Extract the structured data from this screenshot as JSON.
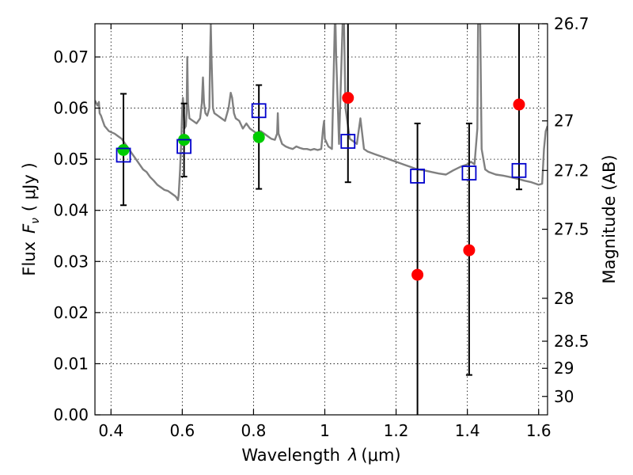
{
  "chart_data": {
    "type": "scatter",
    "xlabel_prefix": "Wavelength",
    "xlabel_symbol": "λ",
    "xlabel_unit": "(μm)",
    "ylabel_prefix": "Flux",
    "ylabel_symbol": "F",
    "ylabel_subscript": "ν",
    "ylabel_unit": "( μJy )",
    "y2label": "Magnitude (AB)",
    "xlim": [
      0.355,
      1.625
    ],
    "ylim": [
      0.0,
      0.0765
    ],
    "xticks": [
      0.4,
      0.6,
      0.8,
      1.0,
      1.2,
      1.4,
      1.6
    ],
    "xtick_labels": [
      "0.4",
      "0.6",
      "0.8",
      "1",
      "1.2",
      "1.4",
      "1.6"
    ],
    "yticks": [
      0.0,
      0.01,
      0.02,
      0.03,
      0.04,
      0.05,
      0.06,
      0.07
    ],
    "ytick_labels": [
      "0.00",
      "0.01",
      "0.02",
      "0.03",
      "0.04",
      "0.05",
      "0.06",
      "0.07"
    ],
    "y2ticks": [
      {
        "label": "26.7",
        "flux": 0.0765
      },
      {
        "label": "27",
        "flux": 0.0575
      },
      {
        "label": "27.2",
        "flux": 0.0478
      },
      {
        "label": "27.5",
        "flux": 0.0363
      },
      {
        "label": "28",
        "flux": 0.0228
      },
      {
        "label": "28.5",
        "flux": 0.0144
      },
      {
        "label": "29",
        "flux": 0.0091
      },
      {
        "label": "30",
        "flux": 0.0036
      }
    ],
    "grid": true,
    "colors": {
      "spectrum": "#808080",
      "detections": "#00cc00",
      "upper": "#ff0000",
      "model": "#0000cc",
      "errorbar": "#000000"
    },
    "series": [
      {
        "kind": "line",
        "points": [
          [
            0.355,
            0.0615
          ],
          [
            0.362,
            0.0605
          ],
          [
            0.366,
            0.0612
          ],
          [
            0.368,
            0.059
          ],
          [
            0.372,
            0.0585
          ],
          [
            0.377,
            0.0575
          ],
          [
            0.382,
            0.0565
          ],
          [
            0.388,
            0.056
          ],
          [
            0.394,
            0.0555
          ],
          [
            0.4,
            0.0553
          ],
          [
            0.41,
            0.055
          ],
          [
            0.42,
            0.0545
          ],
          [
            0.43,
            0.054
          ],
          [
            0.44,
            0.053
          ],
          [
            0.45,
            0.052
          ],
          [
            0.46,
            0.051
          ],
          [
            0.47,
            0.05
          ],
          [
            0.48,
            0.049
          ],
          [
            0.49,
            0.048
          ],
          [
            0.5,
            0.0475
          ],
          [
            0.51,
            0.0465
          ],
          [
            0.52,
            0.0458
          ],
          [
            0.53,
            0.045
          ],
          [
            0.54,
            0.0445
          ],
          [
            0.55,
            0.044
          ],
          [
            0.56,
            0.0438
          ],
          [
            0.57,
            0.0433
          ],
          [
            0.58,
            0.0428
          ],
          [
            0.584,
            0.0425
          ],
          [
            0.588,
            0.042
          ],
          [
            0.59,
            0.043
          ],
          [
            0.594,
            0.048
          ],
          [
            0.598,
            0.055
          ],
          [
            0.6,
            0.06
          ],
          [
            0.602,
            0.062
          ],
          [
            0.604,
            0.06
          ],
          [
            0.606,
            0.056
          ],
          [
            0.61,
            0.0565
          ],
          [
            0.612,
            0.059
          ],
          [
            0.614,
            0.07
          ],
          [
            0.616,
            0.061
          ],
          [
            0.62,
            0.058
          ],
          [
            0.63,
            0.0575
          ],
          [
            0.64,
            0.057
          ],
          [
            0.65,
            0.058
          ],
          [
            0.655,
            0.061
          ],
          [
            0.658,
            0.066
          ],
          [
            0.661,
            0.061
          ],
          [
            0.665,
            0.059
          ],
          [
            0.67,
            0.0585
          ],
          [
            0.676,
            0.06
          ],
          [
            0.678,
            0.07
          ],
          [
            0.68,
            0.0765
          ],
          [
            0.682,
            0.07
          ],
          [
            0.686,
            0.06
          ],
          [
            0.69,
            0.059
          ],
          [
            0.7,
            0.0585
          ],
          [
            0.71,
            0.058
          ],
          [
            0.72,
            0.0575
          ],
          [
            0.73,
            0.06
          ],
          [
            0.736,
            0.063
          ],
          [
            0.74,
            0.062
          ],
          [
            0.745,
            0.059
          ],
          [
            0.75,
            0.058
          ],
          [
            0.76,
            0.0575
          ],
          [
            0.77,
            0.056
          ],
          [
            0.78,
            0.057
          ],
          [
            0.79,
            0.056
          ],
          [
            0.8,
            0.0555
          ],
          [
            0.81,
            0.055
          ],
          [
            0.82,
            0.0555
          ],
          [
            0.83,
            0.055
          ],
          [
            0.84,
            0.0545
          ],
          [
            0.85,
            0.054
          ],
          [
            0.86,
            0.0538
          ],
          [
            0.866,
            0.055
          ],
          [
            0.868,
            0.059
          ],
          [
            0.87,
            0.055
          ],
          [
            0.88,
            0.053
          ],
          [
            0.89,
            0.0525
          ],
          [
            0.9,
            0.0522
          ],
          [
            0.91,
            0.052
          ],
          [
            0.92,
            0.0525
          ],
          [
            0.93,
            0.0522
          ],
          [
            0.94,
            0.052
          ],
          [
            0.95,
            0.052
          ],
          [
            0.96,
            0.0518
          ],
          [
            0.97,
            0.052
          ],
          [
            0.98,
            0.0518
          ],
          [
            0.99,
            0.052
          ],
          [
            0.995,
            0.056
          ],
          [
            0.998,
            0.0575
          ],
          [
            1.0,
            0.054
          ],
          [
            1.01,
            0.0525
          ],
          [
            1.02,
            0.052
          ],
          [
            1.026,
            0.07
          ],
          [
            1.028,
            0.0765
          ],
          [
            1.03,
            0.0765
          ],
          [
            1.032,
            0.07
          ],
          [
            1.04,
            0.053
          ],
          [
            1.05,
            0.0765
          ],
          [
            1.054,
            0.0765
          ],
          [
            1.058,
            0.06
          ],
          [
            1.07,
            0.054
          ],
          [
            1.08,
            0.0535
          ],
          [
            1.09,
            0.053
          ],
          [
            1.1,
            0.058
          ],
          [
            1.11,
            0.052
          ],
          [
            1.12,
            0.0515
          ],
          [
            1.14,
            0.051
          ],
          [
            1.16,
            0.0505
          ],
          [
            1.18,
            0.05
          ],
          [
            1.2,
            0.0495
          ],
          [
            1.22,
            0.049
          ],
          [
            1.24,
            0.0485
          ],
          [
            1.26,
            0.048
          ],
          [
            1.28,
            0.0478
          ],
          [
            1.3,
            0.0475
          ],
          [
            1.32,
            0.0472
          ],
          [
            1.34,
            0.047
          ],
          [
            1.36,
            0.0478
          ],
          [
            1.38,
            0.0485
          ],
          [
            1.4,
            0.049
          ],
          [
            1.41,
            0.0495
          ],
          [
            1.42,
            0.049
          ],
          [
            1.428,
            0.056
          ],
          [
            1.43,
            0.0765
          ],
          [
            1.436,
            0.0765
          ],
          [
            1.44,
            0.052
          ],
          [
            1.45,
            0.048
          ],
          [
            1.46,
            0.0475
          ],
          [
            1.48,
            0.047
          ],
          [
            1.5,
            0.0468
          ],
          [
            1.52,
            0.0465
          ],
          [
            1.54,
            0.0462
          ],
          [
            1.56,
            0.0458
          ],
          [
            1.58,
            0.0455
          ],
          [
            1.6,
            0.045
          ],
          [
            1.61,
            0.0452
          ],
          [
            1.615,
            0.052
          ],
          [
            1.62,
            0.0555
          ],
          [
            1.625,
            0.0565
          ]
        ]
      },
      {
        "kind": "points",
        "marker": "circle",
        "points": [
          [
            0.435,
            0.0518
          ],
          [
            0.605,
            0.0538
          ],
          [
            0.815,
            0.0543
          ]
        ]
      },
      {
        "kind": "points",
        "marker": "circle",
        "points": [
          [
            1.065,
            0.062
          ],
          [
            1.26,
            0.0274
          ],
          [
            1.405,
            0.0322
          ],
          [
            1.545,
            0.0607
          ]
        ]
      },
      {
        "kind": "points",
        "marker": "open-square",
        "points": [
          [
            0.435,
            0.0508
          ],
          [
            0.605,
            0.0525
          ],
          [
            0.815,
            0.0595
          ],
          [
            1.065,
            0.0535
          ],
          [
            1.26,
            0.0467
          ],
          [
            1.405,
            0.0473
          ],
          [
            1.545,
            0.0478
          ]
        ]
      },
      {
        "kind": "errorbars",
        "bars": [
          {
            "x": 0.435,
            "low": 0.041,
            "high": 0.0628
          },
          {
            "x": 0.605,
            "low": 0.0466,
            "high": 0.0609
          },
          {
            "x": 0.815,
            "low": 0.0442,
            "high": 0.0645
          },
          {
            "x": 1.065,
            "low": 0.0455,
            "high": 0.0765
          },
          {
            "x": 1.26,
            "low": 0.0,
            "high": 0.057
          },
          {
            "x": 1.405,
            "low": 0.0078,
            "high": 0.057
          },
          {
            "x": 1.545,
            "low": 0.0441,
            "high": 0.0765
          }
        ]
      }
    ]
  }
}
